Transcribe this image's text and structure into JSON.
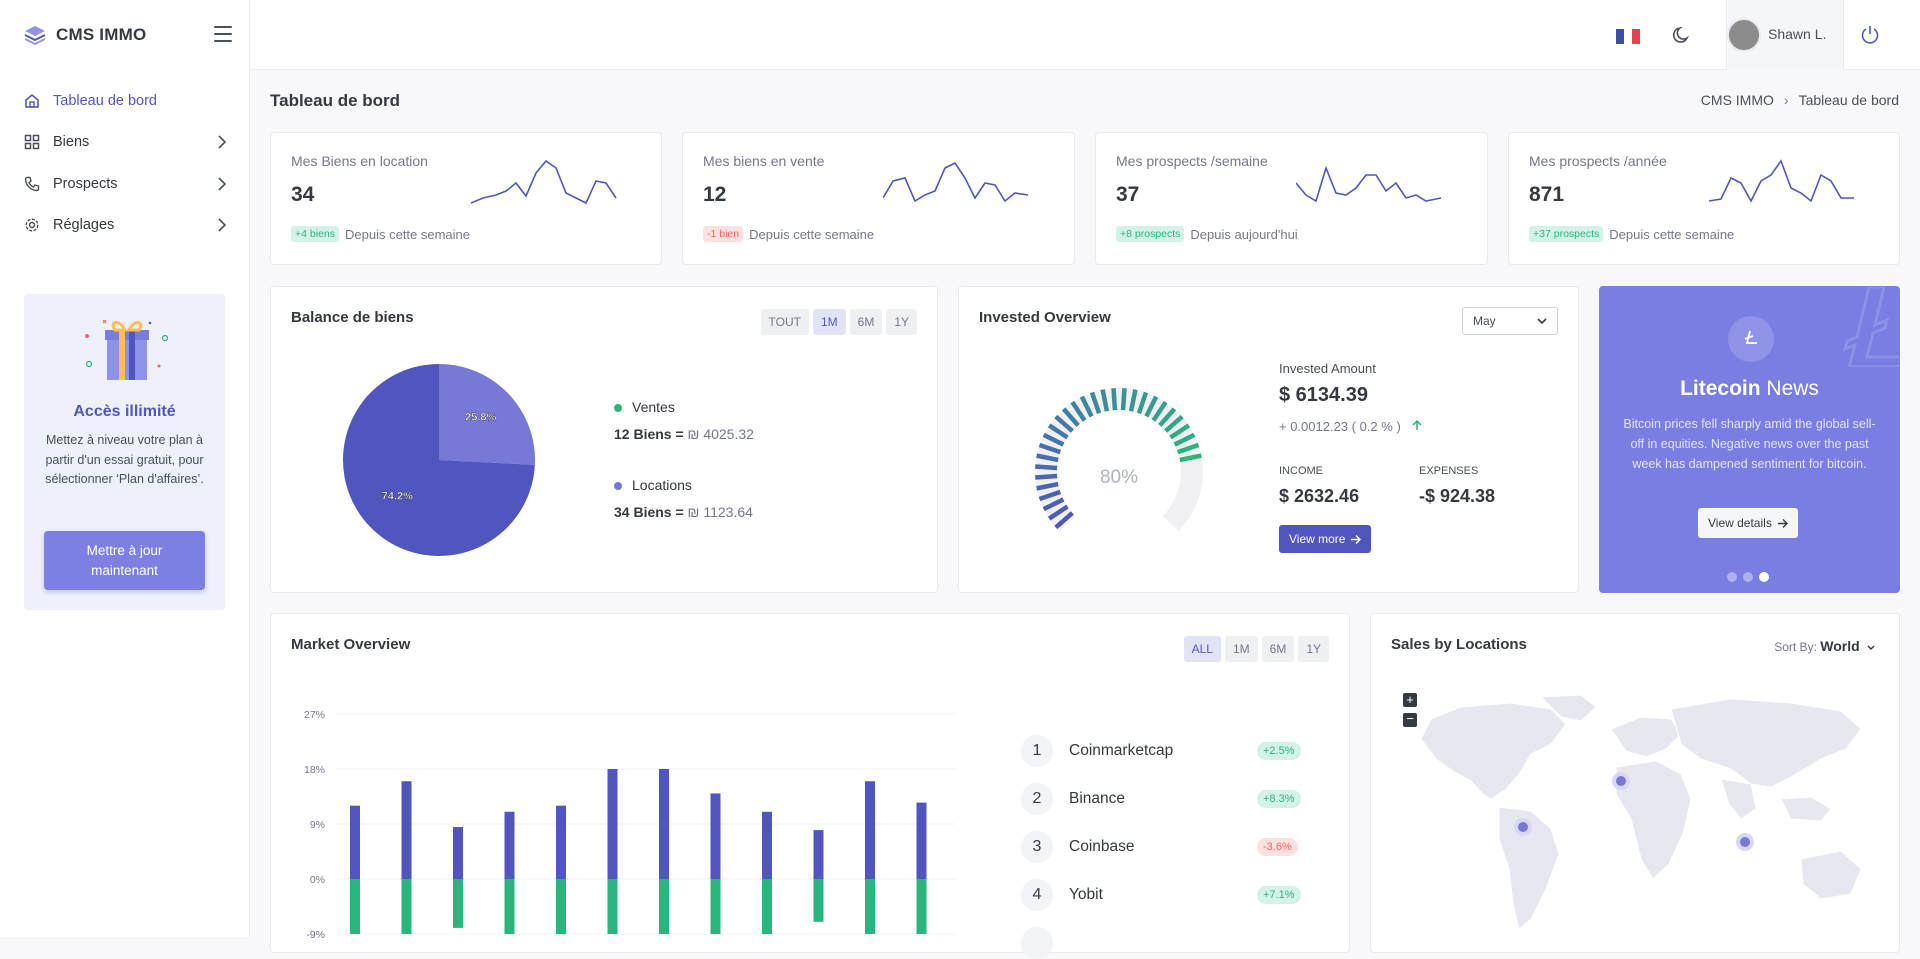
{
  "app": {
    "brand": "CMS IMMO"
  },
  "sidebar": {
    "items": [
      {
        "label": "Tableau de bord"
      },
      {
        "label": "Biens"
      },
      {
        "label": "Prospects"
      },
      {
        "label": "Réglages"
      }
    ],
    "promo": {
      "title": "Accès illimité",
      "text": "Mettez à niveau votre plan à partir d'un essai gratuit, pour sélectionner ‘Plan d'affaires’.",
      "button": "Mettre à jour maintenant"
    }
  },
  "topbar": {
    "user_name": "Shawn L."
  },
  "page": {
    "title": "Tableau de bord",
    "breadcrumb": [
      "CMS IMMO",
      "Tableau de bord"
    ]
  },
  "stats": [
    {
      "label": "Mes Biens en location",
      "value": "34",
      "badge": "+4 biens",
      "badge_color": "green",
      "foot": "Depuis cette semaine"
    },
    {
      "label": "Mes biens en vente",
      "value": "12",
      "badge": "-1 bien",
      "badge_color": "red",
      "foot": "Depuis cette semaine"
    },
    {
      "label": "Mes prospects /semaine",
      "value": "37",
      "badge": "+8 prospects",
      "badge_color": "green",
      "foot": "Depuis aujourd'hui"
    },
    {
      "label": "Mes prospects /année",
      "value": "871",
      "badge": "+37 prospects",
      "badge_color": "green",
      "foot": "Depuis cette semaine"
    }
  ],
  "balance": {
    "title": "Balance de biens",
    "ranges": [
      "TOUT",
      "1M",
      "6M",
      "1Y"
    ],
    "active_range": "1M",
    "legend": [
      {
        "name": "Ventes",
        "detail_bold": "12 Biens =",
        "detail": "₪ 4025.32",
        "color": "#2ab57d"
      },
      {
        "name": "Locations",
        "detail_bold": "34 Biens =",
        "detail": "₪ 1123.64",
        "color": "#7879d6"
      }
    ]
  },
  "invested": {
    "title": "Invested Overview",
    "select": "May",
    "gauge_label": "80%",
    "amount_label": "Invested Amount",
    "amount": "$ 6134.39",
    "change": "+ 0.0012.23 ( 0.2 % )",
    "income_label": "INCOME",
    "income": "$ 2632.46",
    "expenses_label": "EXPENSES",
    "expenses": "-$ 924.38",
    "button": "View more"
  },
  "news": {
    "title_bold": "Litecoin",
    "title_rest": "News",
    "text": "Bitcoin prices fell sharply amid the global sell-off in equities. Negative news over the past week has dampened sentiment for bitcoin.",
    "button": "View details"
  },
  "market": {
    "title": "Market Overview",
    "ranges": [
      "ALL",
      "1M",
      "6M",
      "1Y"
    ],
    "active_range": "ALL",
    "ranks": [
      {
        "n": "1",
        "name": "Coinmarketcap",
        "badge": "+2.5%",
        "color": "green"
      },
      {
        "n": "2",
        "name": "Binance",
        "badge": "+8.3%",
        "color": "green"
      },
      {
        "n": "3",
        "name": "Coinbase",
        "badge": "-3.6%",
        "color": "red"
      },
      {
        "n": "4",
        "name": "Yobit",
        "badge": "+7.1%",
        "color": "green"
      }
    ]
  },
  "sales": {
    "title": "Sales by Locations",
    "sort_label": "Sort By:",
    "sort_value": "World"
  },
  "chart_data": [
    {
      "type": "pie",
      "title": "Balance de biens",
      "labels": [
        "Ventes",
        "Locations"
      ],
      "values": [
        25.8,
        74.2
      ],
      "colors": [
        "#7879d6",
        "#5156be"
      ],
      "data_labels": [
        "25.8%",
        "74.2%"
      ]
    },
    {
      "type": "bar",
      "title": "Market Overview",
      "ytick_labels": [
        "27%",
        "18%",
        "9%",
        "0%",
        "-9%"
      ],
      "ylim": [
        -9,
        27
      ],
      "series": [
        {
          "values": [
            12,
            16,
            8.5,
            11,
            12,
            18,
            18,
            14,
            11,
            8,
            16,
            12.5
          ],
          "color": "#5156be"
        },
        {
          "values": [
            -9,
            -9,
            -8,
            -9,
            -9,
            -9,
            -9,
            -9,
            -9,
            -7,
            -9,
            -9
          ],
          "color": "#2ab57d"
        }
      ]
    }
  ]
}
